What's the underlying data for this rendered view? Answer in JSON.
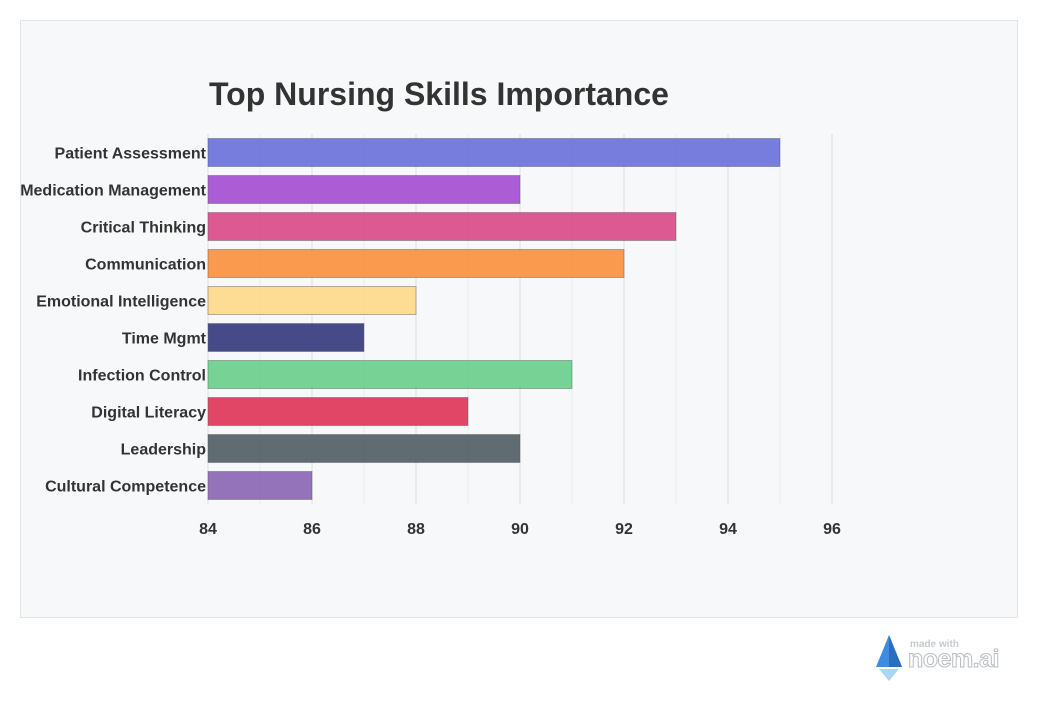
{
  "chart_data": {
    "type": "bar",
    "orientation": "horizontal",
    "title": "Top Nursing Skills Importance",
    "categories": [
      "Patient Assessment",
      "Medication Management",
      "Critical Thinking",
      "Communication",
      "Emotional Intelligence",
      "Time Mgmt",
      "Infection Control",
      "Digital Literacy",
      "Leadership",
      "Cultural Competence"
    ],
    "values": [
      95,
      90,
      93,
      92,
      88,
      87,
      91,
      89,
      90,
      86
    ],
    "colors": [
      "#6a72da",
      "#a54fd3",
      "#da4b89",
      "#f8913f",
      "#fdd98a",
      "#373b7f",
      "#6acf8c",
      "#e0365a",
      "#545e66",
      "#8c67b4"
    ],
    "xlim": [
      84,
      96
    ],
    "xticks": [
      84,
      86,
      88,
      90,
      92,
      94,
      96
    ],
    "grid": true,
    "xlabel": "",
    "ylabel": ""
  },
  "watermark": {
    "small": "made with",
    "big": "noem.ai"
  }
}
